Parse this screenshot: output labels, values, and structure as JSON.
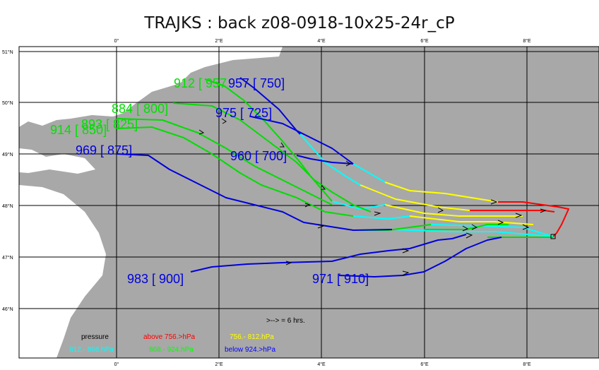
{
  "title": "TRAJKS : back z08-0918-10x25-24r_cP",
  "axes": {
    "lon_ticks": [
      "0°",
      "2°E",
      "4°E",
      "6°E",
      "8°E"
    ],
    "lat_ticks": [
      "51°N",
      "50°N",
      "49°N",
      "48°N",
      "47°N",
      "46°N"
    ]
  },
  "trajectory_labels": [
    {
      "text": "912 [ 957",
      "color": "green"
    },
    {
      "text": "957 [ 750]",
      "color": "blue"
    },
    {
      "text": "884 [ 800]",
      "color": "green"
    },
    {
      "text": "975 [ 725]",
      "color": "blue"
    },
    {
      "text": "893 [ 825]",
      "color": "green"
    },
    {
      "text": "914 [ 850]",
      "color": "green"
    },
    {
      "text": "969 [ 875]",
      "color": "blue"
    },
    {
      "text": "960 [ 700]",
      "color": "blue"
    },
    {
      "text": "983 [ 900]",
      "color": "blue"
    },
    {
      "text": "971 [ 910]",
      "color": "blue"
    }
  ],
  "legend": {
    "arrow_note": ">--> =  6 hrs.",
    "pressure_label": "pressure",
    "classes": [
      {
        "label": "above  756.>hPa",
        "color": "#ff0000"
      },
      {
        "label": "756.-    812.hPa",
        "color": "#ffff00"
      },
      {
        "label": "812.-    868.hPa",
        "color": "#00ffff"
      },
      {
        "label": "868.-    924.hPa",
        "color": "#00ff00"
      },
      {
        "label": "below   924.>hPa",
        "color": "#0000ff"
      }
    ]
  },
  "colors": {
    "land": "#a8a8a8",
    "sea": "#ffffff",
    "red": "#ff0000",
    "yellow": "#ffff00",
    "cyan": "#00ffff",
    "green": "#00e000",
    "blue": "#0000dd"
  }
}
